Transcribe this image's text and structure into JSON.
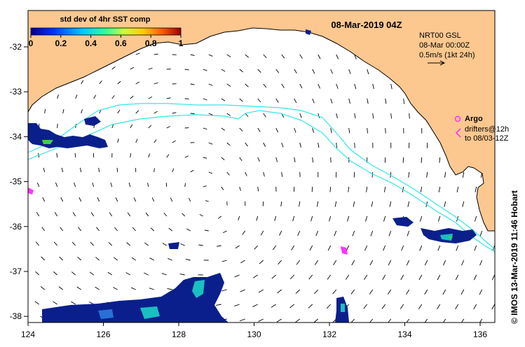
{
  "header": {
    "colorbar_title": "std dev of 4hr SST comp",
    "colorbar_ticks": [
      "0",
      "0.2",
      "0.4",
      "0.6",
      "0.8",
      "1"
    ],
    "date_title": "08-Mar-2019 04Z"
  },
  "info_box": {
    "line1": "NRT00 GSL",
    "line2": "08-Mar 00:00Z",
    "line3": "0.5m/s (1kt 24h)"
  },
  "legend": {
    "argo_label": "Argo",
    "drifters_line1": "drifters@12h",
    "drifters_line2": "to 08/03-12Z"
  },
  "credit": "© IMOS 13-Mar-2019 11:46 Hobart",
  "axes": {
    "x_ticks": [
      "124",
      "126",
      "128",
      "130",
      "132",
      "134",
      "136"
    ],
    "y_ticks": [
      "-32",
      "-33",
      "-34",
      "-35",
      "-36",
      "-37",
      "-38"
    ]
  },
  "colors": {
    "land": "#fcc88f",
    "contour": "#33e6e6",
    "argo": "#ff33ff",
    "sst_low": "#0a1f8c",
    "sst_mid": "#18c0c0",
    "sst_high": "#3fd24d"
  },
  "icons": {
    "argo_marker": "argo-float-icon",
    "drifter_marker": "drifter-track-icon",
    "scale_arrow": "velocity-scale-arrow-icon"
  }
}
